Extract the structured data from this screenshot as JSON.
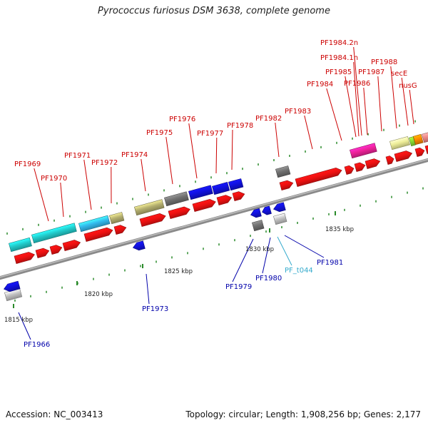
{
  "title": "Pyrococcus furiosus DSM 3638, complete genome",
  "footer": {
    "accession": "Accession: NC_003413",
    "stats": "Topology: circular; Length: 1,908,256 bp; Genes: 2,177"
  },
  "colors": {
    "backbone": "#9a9a9a",
    "forward_label": "#cc0000",
    "reverse_label": "#0000aa",
    "trna_label": "#33aacc",
    "tick": "#1a8a1a"
  },
  "scale_labels": [
    "1815 kbp",
    "1820 kbp",
    "1825 kbp",
    "1830 kbp",
    "1835 kbp"
  ],
  "forward_genes": [
    {
      "label": "PF1969"
    },
    {
      "label": "PF1970"
    },
    {
      "label": "PF1971"
    },
    {
      "label": "PF1972"
    },
    {
      "label": "PF1974"
    },
    {
      "label": "PF1975"
    },
    {
      "label": "PF1976"
    },
    {
      "label": "PF1977"
    },
    {
      "label": "PF1978"
    },
    {
      "label": "PF1982"
    },
    {
      "label": "PF1983"
    },
    {
      "label": "PF1984"
    },
    {
      "label": "PF1984.2n"
    },
    {
      "label": "PF1984.1n"
    },
    {
      "label": "PF1985"
    },
    {
      "label": "PF1986"
    },
    {
      "label": "PF1987"
    },
    {
      "label": "PF1988"
    },
    {
      "label": "secE"
    },
    {
      "label": "nusG"
    }
  ],
  "reverse_genes": [
    {
      "label": "PF1966"
    },
    {
      "label": "PF1973"
    },
    {
      "label": "PF1979"
    },
    {
      "label": "PF1980"
    },
    {
      "label": "PF_t044"
    },
    {
      "label": "PF1981"
    }
  ]
}
